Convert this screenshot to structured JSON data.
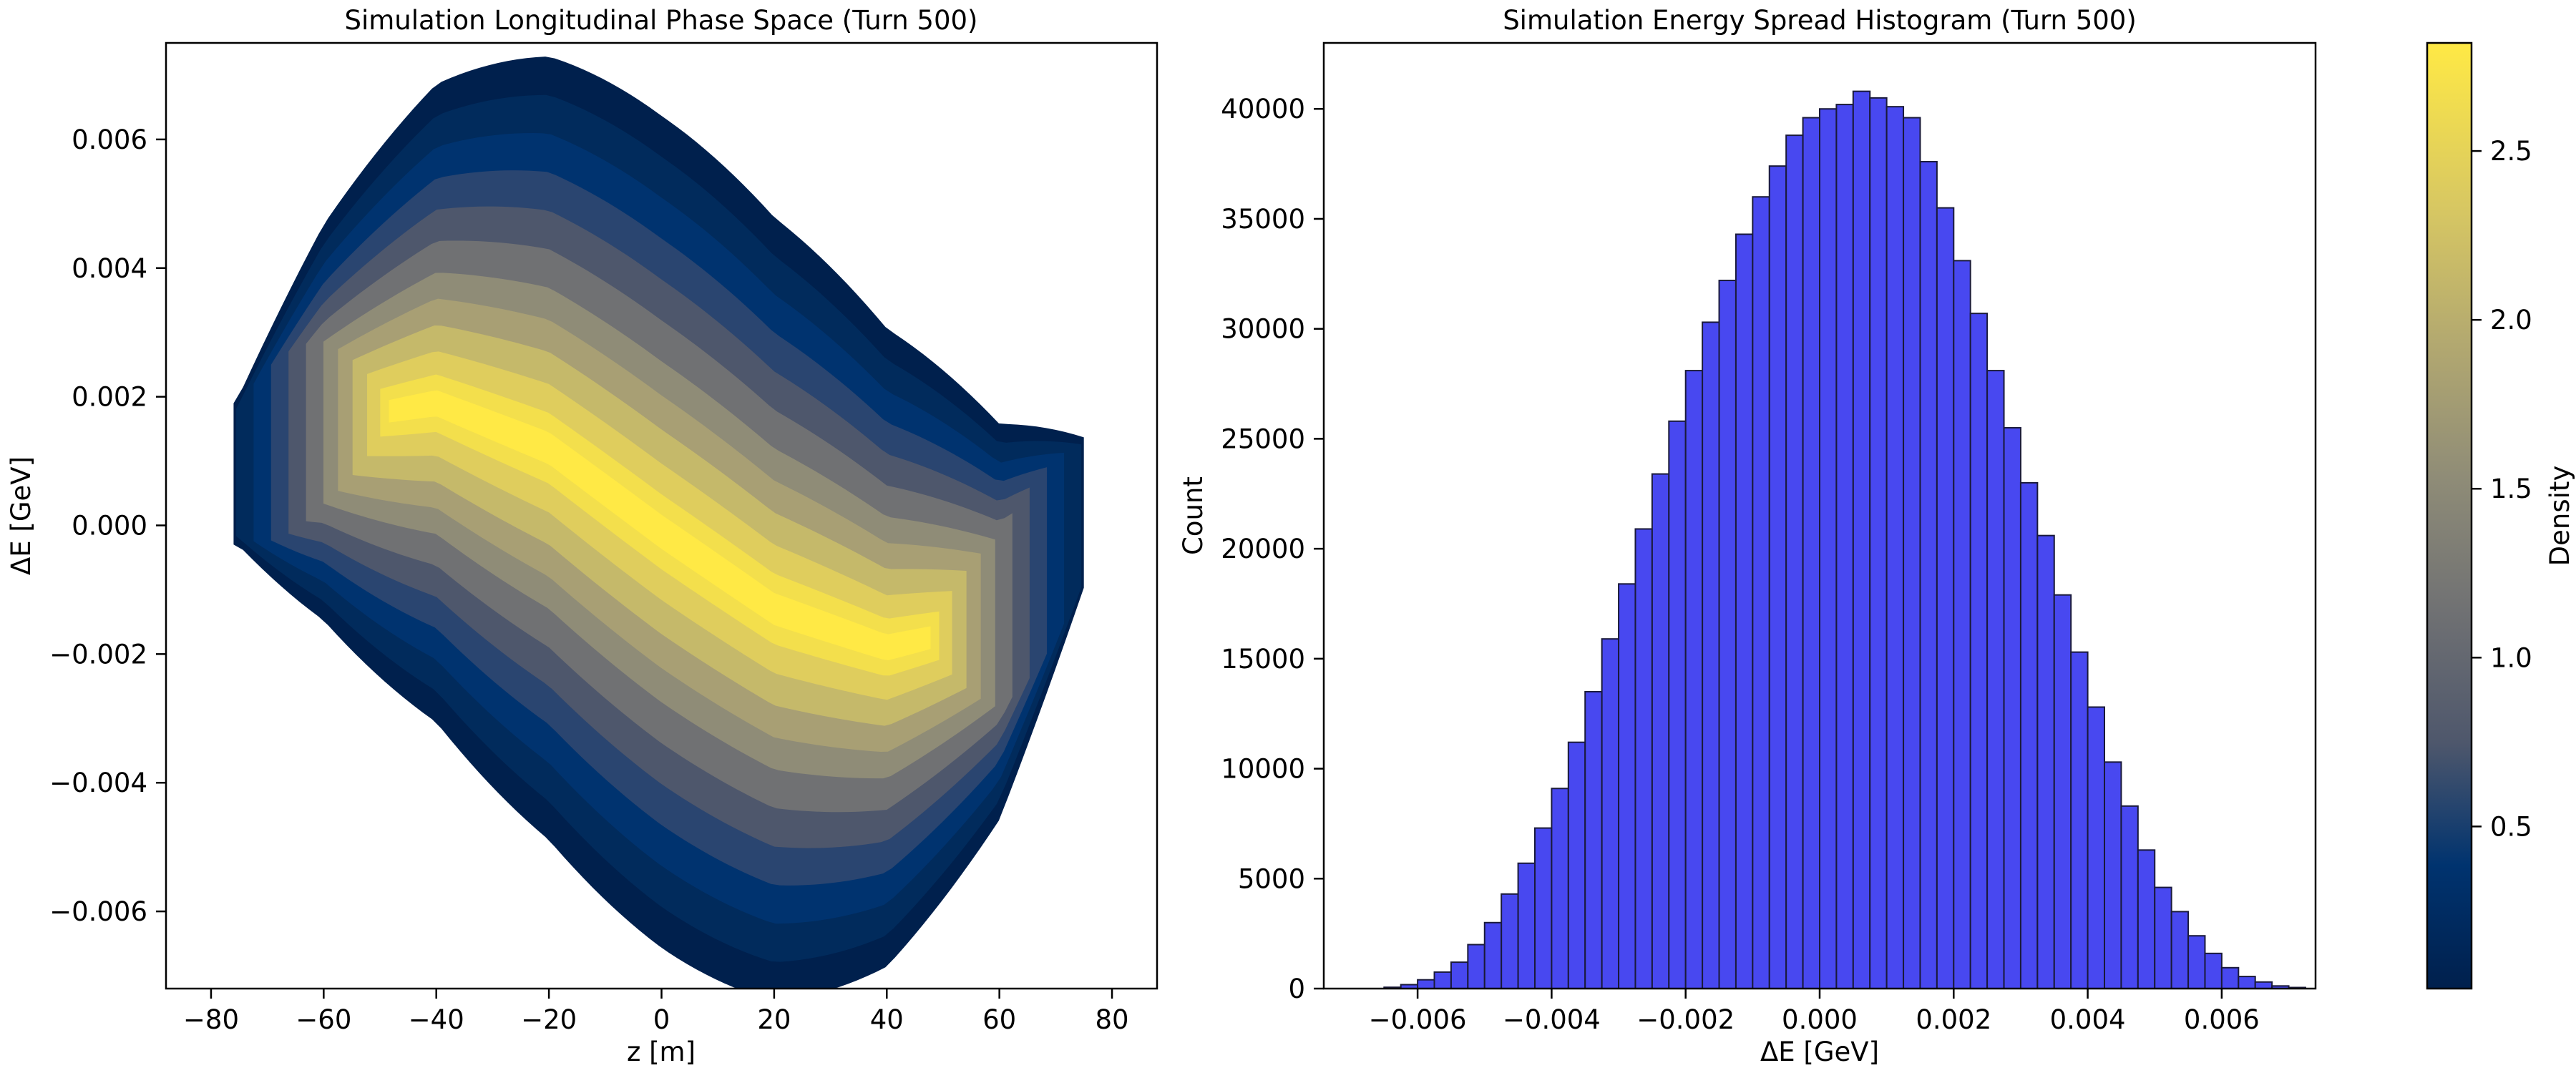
{
  "chart_data": [
    {
      "type": "scatter",
      "title": "Simulation Longitudinal Phase Space (Turn 500)",
      "xlabel": "z [m]",
      "ylabel": "ΔE [GeV]",
      "xlim": [
        -88,
        88
      ],
      "ylim": [
        -0.0072,
        0.0075
      ],
      "xticks": [
        -80,
        -60,
        -40,
        -20,
        0,
        20,
        40,
        60,
        80
      ],
      "xtick_labels": [
        "−80",
        "−60",
        "−40",
        "−20",
        "0",
        "20",
        "40",
        "60",
        "80"
      ],
      "yticks": [
        -0.006,
        -0.004,
        -0.002,
        0.0,
        0.002,
        0.004,
        0.006
      ],
      "ytick_labels": [
        "−0.006",
        "−0.004",
        "−0.002",
        "0.000",
        "0.002",
        "0.004",
        "0.006"
      ],
      "grid": false,
      "colormap": "cividis",
      "color_by": "Density",
      "core_centerline": [
        {
          "z": -80,
          "dE": 0.0006
        },
        {
          "z": -60,
          "dE": 0.0016
        },
        {
          "z": -40,
          "dE": 0.0019
        },
        {
          "z": -20,
          "dE": 0.0012
        },
        {
          "z": 0,
          "dE": -0.0001
        },
        {
          "z": 20,
          "dE": -0.0013
        },
        {
          "z": 40,
          "dE": -0.0019
        },
        {
          "z": 60,
          "dE": -0.0015
        },
        {
          "z": 75,
          "dE": 0.0002
        }
      ],
      "outer_envelope": {
        "z_min": -76,
        "z_max": 75,
        "dE_max": 0.0069,
        "dE_max_at_z": -28,
        "dE_min": -0.0065,
        "dE_min_at_z": 20
      }
    },
    {
      "type": "bar",
      "title": "Simulation Energy Spread Histogram (Turn 500)",
      "xlabel": "ΔE [GeV]",
      "ylabel": "Count",
      "xlim": [
        -0.0074,
        0.0074
      ],
      "ylim": [
        0,
        43000
      ],
      "xticks": [
        -0.006,
        -0.004,
        -0.002,
        0.0,
        0.002,
        0.004,
        0.006
      ],
      "xtick_labels": [
        "−0.006",
        "−0.004",
        "−0.002",
        "0.000",
        "0.002",
        "0.004",
        "0.006"
      ],
      "yticks": [
        0,
        5000,
        10000,
        15000,
        20000,
        25000,
        30000,
        35000,
        40000
      ],
      "ytick_labels": [
        "0",
        "5000",
        "10000",
        "15000",
        "20000",
        "25000",
        "30000",
        "35000",
        "40000"
      ],
      "grid": false,
      "bar_color": "#4848f0",
      "bin_left_edge": -0.0065,
      "bin_width": 0.00025,
      "counts": [
        60,
        180,
        400,
        750,
        1200,
        2000,
        3000,
        4300,
        5700,
        7300,
        9100,
        11200,
        13500,
        15900,
        18400,
        20900,
        23400,
        25800,
        28100,
        30300,
        32200,
        34300,
        36000,
        37400,
        38800,
        39600,
        40000,
        40200,
        40800,
        40500,
        40100,
        39600,
        37600,
        35500,
        33100,
        30700,
        28100,
        25500,
        23000,
        20600,
        17900,
        15300,
        12800,
        10300,
        8300,
        6300,
        4600,
        3500,
        2400,
        1600,
        950,
        550,
        300,
        120,
        50
      ]
    }
  ],
  "colorbar": {
    "label": "Density",
    "colormap": "cividis",
    "range": [
      0.02,
      2.82
    ],
    "ticks": [
      0.5,
      1.0,
      1.5,
      2.0,
      2.5
    ],
    "tick_labels": [
      "0.5",
      "1.0",
      "1.5",
      "2.0",
      "2.5"
    ]
  }
}
